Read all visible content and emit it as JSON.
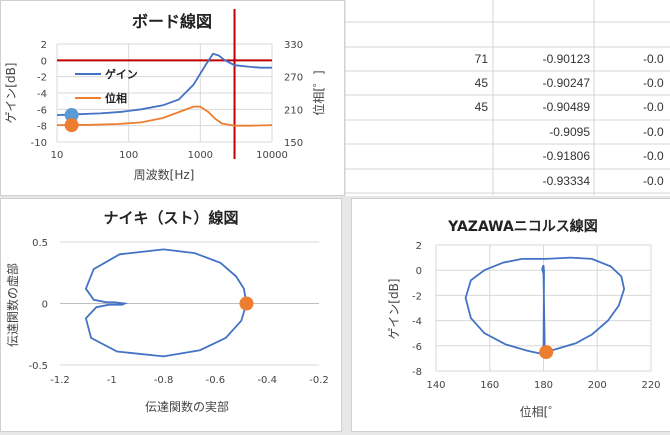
{
  "colors": {
    "blue": "#4472c4",
    "orange": "#ed7d31",
    "red": "#c00000",
    "gridline": "#d9d9d9",
    "dot_blue": "#5b9bd5"
  },
  "sheet": {
    "rows": [
      {
        "a": "71",
        "b": "-0.90123",
        "c": "-0.0"
      },
      {
        "a": "45",
        "b": "-0.90247",
        "c": "-0.0"
      },
      {
        "a": "45",
        "b": "-0.90489",
        "c": "-0.0"
      },
      {
        "a": "",
        "b": "-0.9095",
        "c": "-0.0"
      },
      {
        "a": "",
        "b": "-0.91806",
        "c": "-0.0"
      },
      {
        "a": "",
        "b": "-0.93334",
        "c": "-0.0"
      }
    ]
  },
  "chart_data": [
    {
      "type": "line",
      "title": "ボード線図",
      "xlabel": "周波数[Hz]",
      "ylabel": "ゲイン[dB]",
      "y2label": "位相[゜]",
      "xscale": "log",
      "xlim": [
        10,
        10000
      ],
      "ylim": [
        -10,
        2
      ],
      "y2lim": [
        150,
        330
      ],
      "xticks": [
        "10",
        "100",
        "1000",
        "10000"
      ],
      "yticks": [
        "2",
        "0",
        "-2",
        "-4",
        "-6",
        "-8",
        "-10"
      ],
      "y2ticks": [
        "330",
        "270",
        "210",
        "150"
      ],
      "series": [
        {
          "name": "ゲイン",
          "axis": "left",
          "color": "#4472c4",
          "x": [
            10,
            20,
            40,
            80,
            150,
            300,
            500,
            800,
            1200,
            1500,
            1800,
            2200,
            3000,
            5000,
            7000,
            10000
          ],
          "y": [
            -6.7,
            -6.6,
            -6.5,
            -6.3,
            -6.0,
            -5.5,
            -4.8,
            -3.0,
            -0.5,
            0.8,
            0.6,
            0.0,
            -0.6,
            -0.8,
            -0.9,
            -0.9
          ]
        },
        {
          "name": "位相",
          "axis": "right",
          "color": "#ed7d31",
          "x": [
            10,
            30,
            70,
            150,
            300,
            500,
            800,
            1000,
            1300,
            1600,
            2000,
            3000,
            5000,
            10000
          ],
          "y": [
            181,
            181.5,
            183,
            186,
            194,
            205,
            215,
            215,
            205,
            193,
            184,
            180,
            180,
            181
          ]
        }
      ],
      "vline_x": 3000,
      "hline_y": 0,
      "markers": [
        {
          "x": 16,
          "y": -6.7,
          "axis": "left",
          "color": "#5b9bd5"
        },
        {
          "x": 16,
          "y": 181,
          "axis": "right",
          "color": "#ed7d31"
        }
      ],
      "legend": "inside-left"
    },
    {
      "type": "line",
      "title": "ナイキ（スト）線図",
      "xlabel": "伝達関数の実部",
      "ylabel": "伝達関数の虚部",
      "xlim": [
        -1.2,
        -0.2
      ],
      "ylim": [
        -0.5,
        0.5
      ],
      "xticks": [
        "-1.2",
        "-1",
        "-0.8",
        "-0.6",
        "-0.4",
        "-0.2"
      ],
      "yticks": [
        "0.5",
        "0",
        "-0.5"
      ],
      "series": [
        {
          "color": "#4472c4",
          "x": [
            -0.48,
            -0.49,
            -0.52,
            -0.58,
            -0.68,
            -0.8,
            -0.97,
            -1.07,
            -1.1,
            -1.07,
            -1.02,
            -0.99,
            -0.95,
            -0.96,
            -1.01,
            -1.06,
            -1.1,
            -1.08,
            -0.98,
            -0.8,
            -0.66,
            -0.56,
            -0.5,
            -0.48
          ],
          "y": [
            0.0,
            0.12,
            0.22,
            0.33,
            0.41,
            0.44,
            0.4,
            0.28,
            0.12,
            0.03,
            0.01,
            0.01,
            0.0,
            -0.01,
            -0.01,
            -0.03,
            -0.12,
            -0.28,
            -0.39,
            -0.43,
            -0.38,
            -0.28,
            -0.14,
            0.0
          ]
        }
      ],
      "markers": [
        {
          "x": -0.48,
          "y": 0.0,
          "color": "#ed7d31"
        }
      ]
    },
    {
      "type": "line",
      "title": "YAZAWAニコルス線図",
      "xlabel": "位相[゜",
      "ylabel": "ゲイン[dB]",
      "xlim": [
        140,
        220
      ],
      "ylim": [
        -8,
        2
      ],
      "xticks": [
        "140",
        "160",
        "180",
        "200",
        "220"
      ],
      "yticks": [
        "2",
        "0",
        "-2",
        "-4",
        "-6",
        "-8"
      ],
      "series": [
        {
          "color": "#4472c4",
          "x": [
            180.5,
            184,
            192,
            198,
            204,
            208,
            210,
            209,
            205,
            198,
            190,
            181,
            172,
            165,
            158,
            153,
            151,
            153,
            158,
            166,
            174,
            178.5,
            180,
            180.2,
            180,
            179.5,
            180,
            180.5
          ],
          "y": [
            -6.5,
            -6.3,
            -5.8,
            -5.1,
            -4.0,
            -2.8,
            -1.5,
            -0.5,
            0.3,
            0.9,
            1.0,
            0.9,
            0.9,
            0.6,
            0.0,
            -0.8,
            -2.2,
            -3.8,
            -5.0,
            -5.9,
            -6.4,
            -6.6,
            -6.6,
            -0.1,
            0.4,
            0.1,
            -0.3,
            -6.5
          ]
        }
      ],
      "markers": [
        {
          "x": 181,
          "y": -6.5,
          "color": "#ed7d31"
        }
      ]
    }
  ]
}
